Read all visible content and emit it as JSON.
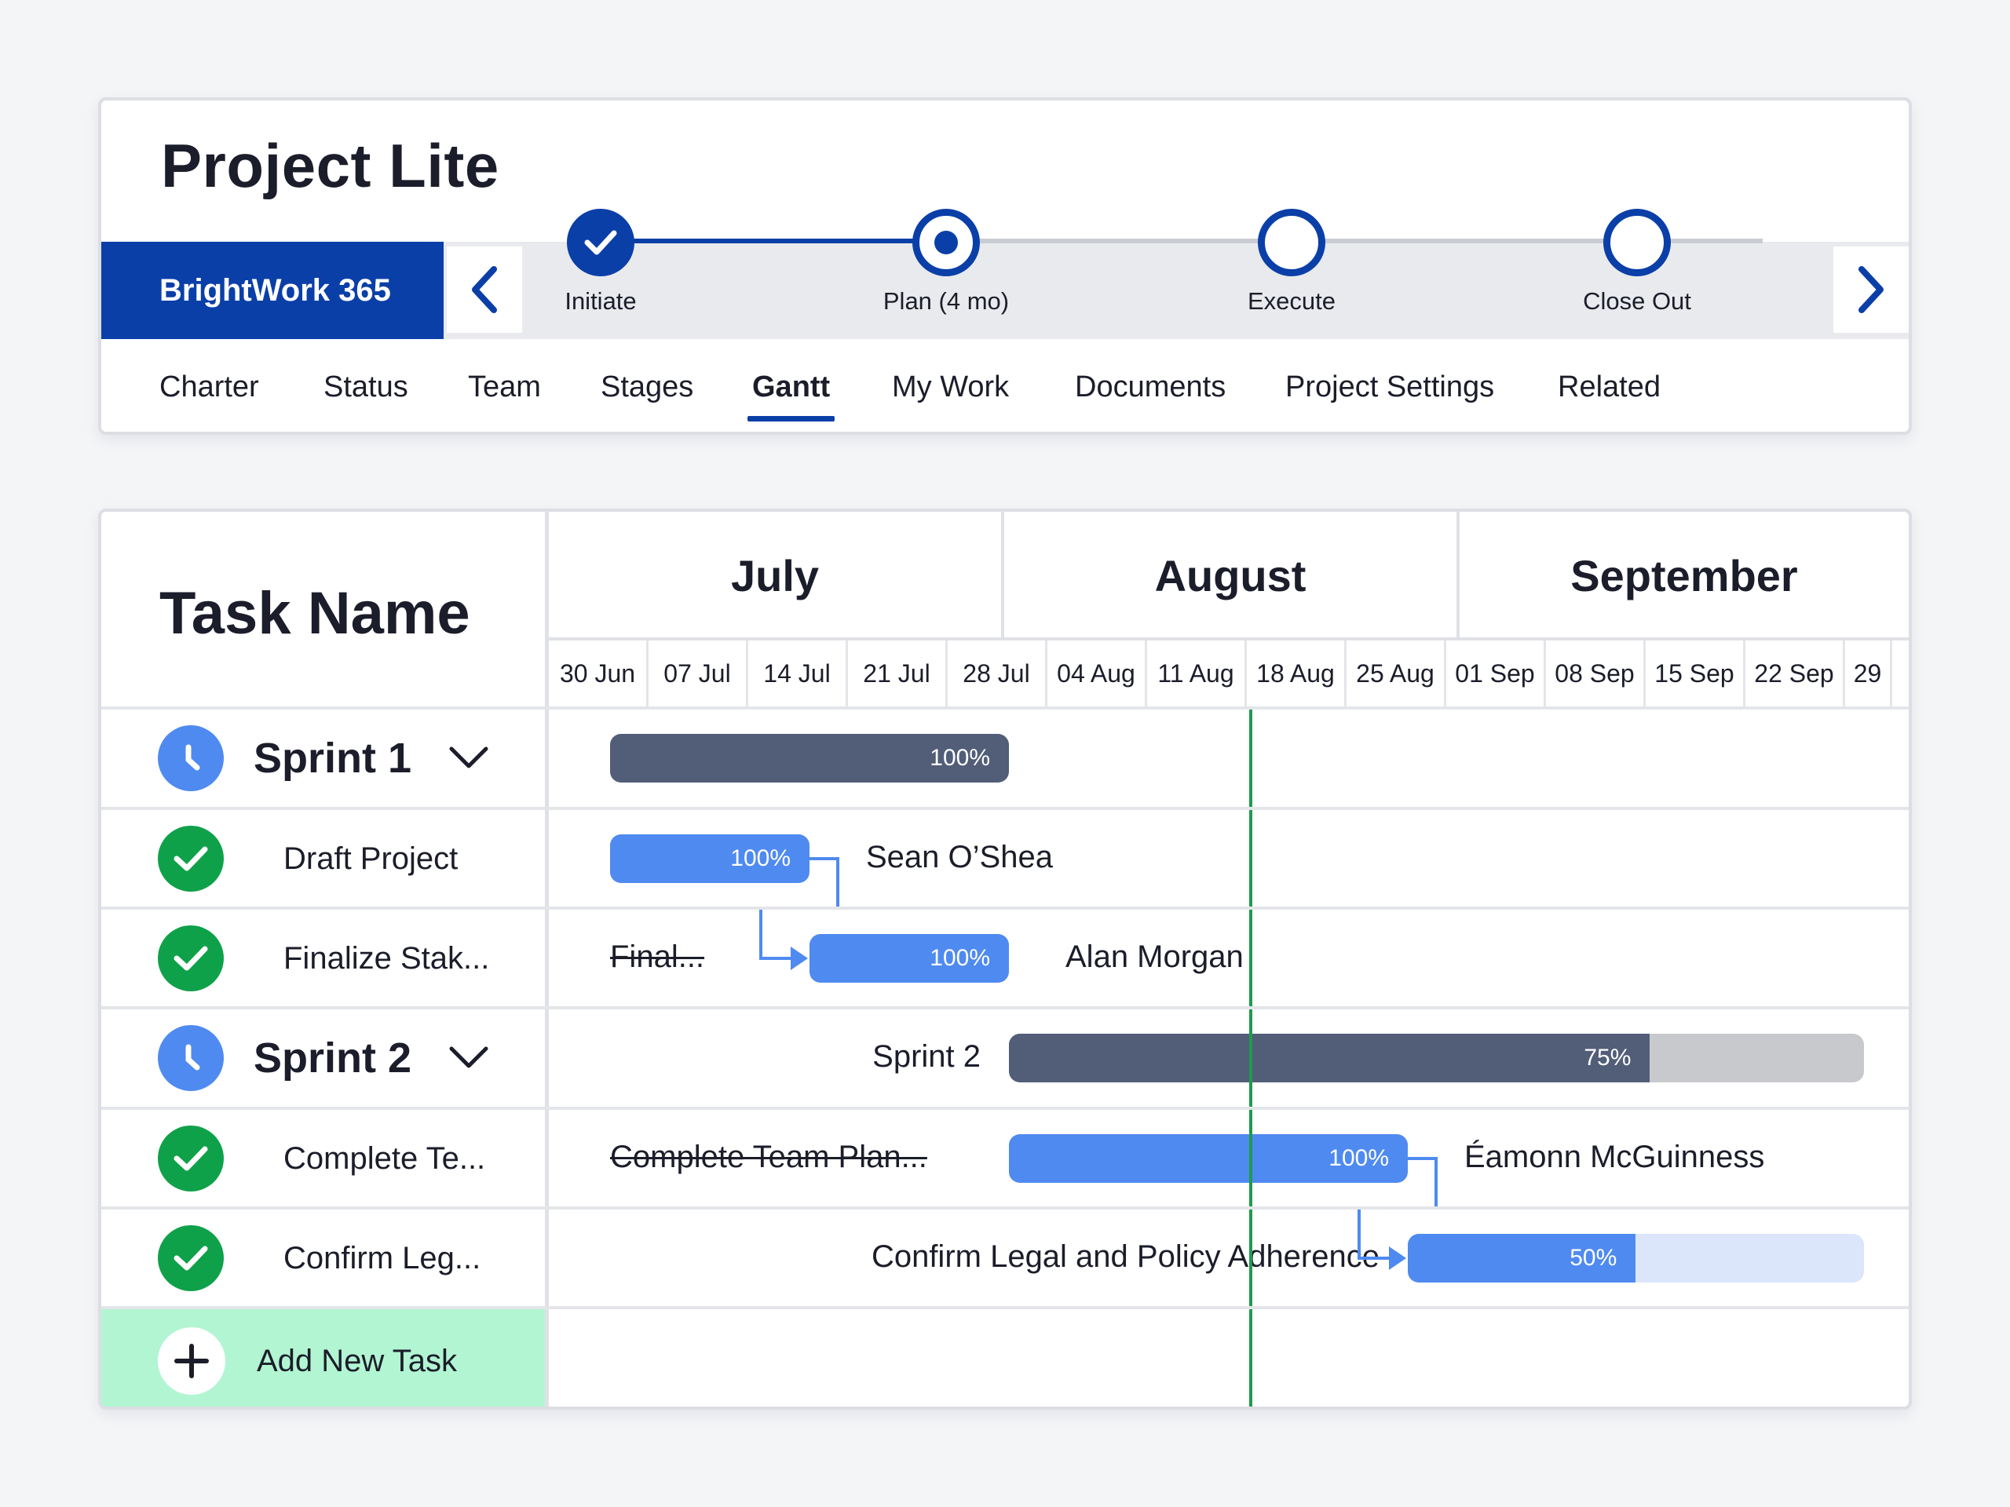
{
  "app": {
    "title": "Project Lite",
    "brand": "BrightWork 365"
  },
  "stages": [
    {
      "label": "Initiate",
      "state": "done"
    },
    {
      "label": "Plan (4 mo)",
      "state": "current"
    },
    {
      "label": "Execute",
      "state": "upcoming"
    },
    {
      "label": "Close Out",
      "state": "upcoming"
    }
  ],
  "tabs": [
    {
      "label": "Charter"
    },
    {
      "label": "Status"
    },
    {
      "label": "Team"
    },
    {
      "label": "Stages"
    },
    {
      "label": "Gantt",
      "active": true
    },
    {
      "label": "My Work"
    },
    {
      "label": "Documents"
    },
    {
      "label": "Project Settings"
    },
    {
      "label": "Related"
    }
  ],
  "gantt": {
    "task_name_header": "Task Name",
    "months": [
      "July",
      "August",
      "September"
    ],
    "weeks": [
      "30 Jun",
      "07 Jul",
      "14 Jul",
      "21 Jul",
      "28 Jul",
      "04 Aug",
      "11 Aug",
      "18 Aug",
      "25 Aug",
      "01 Sep",
      "08 Sep",
      "15 Sep",
      "22 Sep",
      "29"
    ],
    "today": "14 Aug",
    "rows": [
      {
        "type": "sprint",
        "name": "Sprint 1",
        "icon": "clock-icon",
        "bar_label": "",
        "start": "30 Jun",
        "end": "28 Jul",
        "percent": "100%",
        "progress": 1.0,
        "assignee": ""
      },
      {
        "type": "task",
        "name": "Draft Project",
        "icon": "check-icon",
        "bar_label": "",
        "start": "30 Jun",
        "end": "14 Jul",
        "percent": "100%",
        "progress": 1.0,
        "assignee": "Sean O’Shea"
      },
      {
        "type": "task",
        "name": "Finalize Stak...",
        "icon": "check-icon",
        "bar_label": "Final...",
        "start": "14 Jul",
        "end": "28 Jul",
        "percent": "100%",
        "progress": 1.0,
        "assignee": "Alan Morgan"
      },
      {
        "type": "sprint",
        "name": "Sprint 2",
        "icon": "clock-icon",
        "bar_label": "Sprint 2",
        "start": "28 Jul",
        "end": "26 Sep",
        "percent": "75%",
        "progress": 0.75,
        "assignee": ""
      },
      {
        "type": "task",
        "name": "Complete Te...",
        "icon": "check-icon",
        "bar_label": "Complete Team Plan...",
        "start": "28 Jul",
        "end": "25 Aug",
        "percent": "100%",
        "progress": 1.0,
        "assignee": "Éamonn McGuinness"
      },
      {
        "type": "task",
        "name": "Confirm Leg...",
        "icon": "check-icon",
        "bar_label": "Confirm Legal and Policy Adherence",
        "start": "25 Aug",
        "end": "26 Sep",
        "percent": "50%",
        "progress": 0.5,
        "assignee": ""
      }
    ],
    "add_task_label": "Add New Task"
  },
  "colors": {
    "brand": "#0b3fa8",
    "sprint_bar": "#525e78",
    "task_bar": "#4f8af0",
    "task_bar_remaining": "#dbe6fb",
    "sprint_bar_remaining": "#c7c9cd",
    "today_line": "#1d9c4c",
    "add_row": "#b2f5d2",
    "check": "#0fa14a"
  }
}
